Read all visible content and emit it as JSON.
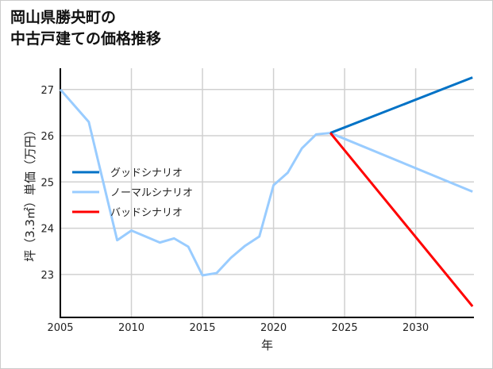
{
  "chart_data": {
    "type": "line",
    "title": "岡山県勝央町の\n中古戸建ての価格推移",
    "xlabel": "年",
    "ylabel": "坪（3.3㎡）単価（万円）",
    "xlim": [
      2005,
      2034.1
    ],
    "ylim": [
      22.07,
      27.46
    ],
    "xticks": [
      2005,
      2010,
      2015,
      2020,
      2025,
      2030
    ],
    "yticks": [
      23,
      24,
      25,
      26,
      27
    ],
    "grid": true,
    "legend_position": "center-left",
    "series": [
      {
        "name": "グッドシナリオ",
        "color": "#0072c6",
        "x": [
          2024,
          2034
        ],
        "y": [
          26.06,
          27.26
        ]
      },
      {
        "name": "ノーマルシナリオ",
        "color": "#99ccff",
        "x": [
          2005,
          2007,
          2009,
          2010,
          2012,
          2013,
          2014,
          2015,
          2016,
          2017,
          2018,
          2019,
          2020,
          2021,
          2022,
          2023,
          2024,
          2034
        ],
        "y": [
          27.0,
          26.3,
          23.74,
          23.95,
          23.69,
          23.78,
          23.6,
          22.98,
          23.03,
          23.36,
          23.62,
          23.82,
          24.93,
          25.2,
          25.73,
          26.03,
          26.06,
          24.79
        ]
      },
      {
        "name": "バッドシナリオ",
        "color": "#ff0000",
        "x": [
          2024,
          2034
        ],
        "y": [
          26.06,
          22.31
        ]
      }
    ]
  }
}
